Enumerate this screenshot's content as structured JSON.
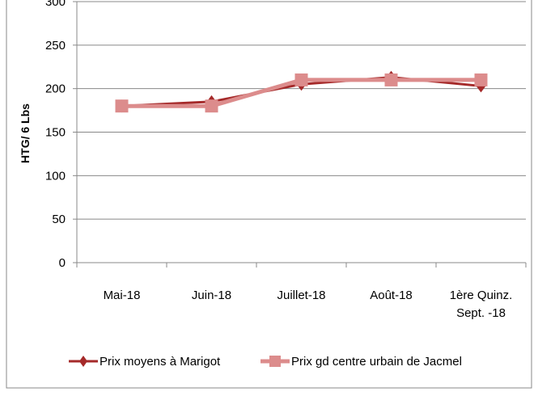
{
  "chart_data": {
    "type": "line",
    "y_label": "HTG/ 6 Lbs",
    "categories": [
      "Mai-18",
      "Juin-18",
      "Juillet-18",
      "Août-18",
      "1ère Quinz.\nSept. -18"
    ],
    "series": [
      {
        "name": "Prix moyens à Marigot",
        "color": "#a52a2a",
        "marker": "diamond",
        "values": [
          180,
          185,
          205,
          213,
          203
        ]
      },
      {
        "name": "Prix gd centre urbain de Jacmel",
        "color": "#dc8c8c",
        "marker": "square",
        "values": [
          180,
          180,
          210,
          210,
          210
        ]
      }
    ],
    "ylim": [
      0,
      300
    ],
    "yticks": [
      0,
      50,
      100,
      150,
      200,
      250,
      300
    ],
    "grid": true
  }
}
